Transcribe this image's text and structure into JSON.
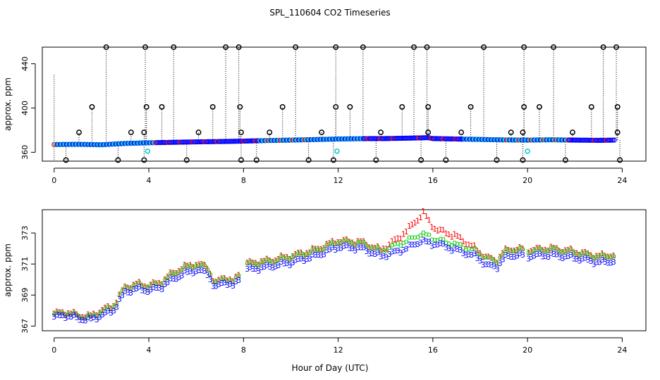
{
  "title": "SPL_110604  CO2 Timeseries",
  "xlabel": "Hour of Day (UTC)",
  "chart_data": [
    {
      "type": "scatter",
      "panel": "top",
      "ylabel": "approx. ppm",
      "xlim": [
        -0.5,
        25
      ],
      "ylim": [
        352,
        455
      ],
      "x_ticks": [
        0,
        4,
        8,
        12,
        16,
        20,
        24
      ],
      "y_ticks": [
        360,
        400,
        440
      ],
      "base_series": {
        "points": [
          [
            0,
            367.0
          ],
          [
            1,
            367.2
          ],
          [
            2,
            366.8
          ],
          [
            3,
            368.0
          ],
          [
            4,
            368.6
          ],
          [
            5,
            369.0
          ],
          [
            6,
            369.4
          ],
          [
            7,
            369.7
          ],
          [
            8,
            370.1
          ],
          [
            9,
            370.6
          ],
          [
            10,
            371.0
          ],
          [
            11,
            371.5
          ],
          [
            12,
            372.0
          ],
          [
            13,
            372.3
          ],
          [
            14,
            372.4
          ],
          [
            15,
            372.8
          ],
          [
            15.8,
            373.2
          ],
          [
            16,
            372.4
          ],
          [
            17,
            372.0
          ],
          [
            18,
            371.6
          ],
          [
            19,
            371.2
          ],
          [
            20,
            371.0
          ],
          [
            21,
            371.3
          ],
          [
            22,
            371.0
          ],
          [
            23,
            370.8
          ],
          [
            23.7,
            371.0
          ]
        ],
        "colors": [
          "#0000ff",
          "#00cccc",
          "#ff0000",
          "#00aa00"
        ]
      },
      "spikes": [
        [
          2.2,
          455
        ],
        [
          3.85,
          455
        ],
        [
          5.05,
          455
        ],
        [
          7.25,
          455
        ],
        [
          7.8,
          455
        ],
        [
          10.2,
          455
        ],
        [
          11.9,
          455
        ],
        [
          13.05,
          455
        ],
        [
          15.2,
          455
        ],
        [
          15.75,
          455
        ],
        [
          18.15,
          455
        ],
        [
          19.85,
          455
        ],
        [
          21.1,
          455
        ],
        [
          23.2,
          455
        ],
        [
          23.75,
          455
        ],
        [
          1.6,
          401
        ],
        [
          3.9,
          401
        ],
        [
          4.55,
          401
        ],
        [
          6.7,
          401
        ],
        [
          7.85,
          401
        ],
        [
          9.65,
          401
        ],
        [
          11.9,
          401
        ],
        [
          12.5,
          401
        ],
        [
          14.7,
          401
        ],
        [
          15.8,
          401
        ],
        [
          17.6,
          401
        ],
        [
          19.85,
          401
        ],
        [
          20.5,
          401
        ],
        [
          22.7,
          401
        ],
        [
          23.8,
          401
        ],
        [
          1.05,
          378
        ],
        [
          3.25,
          378
        ],
        [
          3.8,
          378
        ],
        [
          6.1,
          378
        ],
        [
          7.9,
          378
        ],
        [
          9.1,
          378
        ],
        [
          11.3,
          378
        ],
        [
          13.8,
          378
        ],
        [
          15.8,
          378
        ],
        [
          17.2,
          378
        ],
        [
          19.3,
          378
        ],
        [
          19.8,
          378
        ],
        [
          21.9,
          378
        ],
        [
          23.8,
          378
        ],
        [
          0.5,
          353
        ],
        [
          2.7,
          353
        ],
        [
          3.8,
          353
        ],
        [
          5.6,
          353
        ],
        [
          7.9,
          353
        ],
        [
          8.55,
          353
        ],
        [
          10.75,
          353
        ],
        [
          11.8,
          353
        ],
        [
          13.6,
          353
        ],
        [
          15.5,
          353
        ],
        [
          16.55,
          353
        ],
        [
          18.7,
          353
        ],
        [
          19.8,
          353
        ],
        [
          21.6,
          353
        ],
        [
          23.9,
          353
        ]
      ],
      "cyan_markers": [
        [
          3.95,
          361
        ],
        [
          11.95,
          361
        ],
        [
          20.0,
          361
        ]
      ],
      "dotted_line_x": 0.0,
      "dotted_line_top": 430
    },
    {
      "type": "line",
      "panel": "bottom",
      "ylabel": "approx. ppm",
      "xlim": [
        -0.5,
        25
      ],
      "ylim": [
        366.7,
        374.5
      ],
      "x_ticks": [
        0,
        4,
        8,
        12,
        16,
        20,
        24
      ],
      "y_ticks": [
        367,
        369,
        371,
        373
      ],
      "series": [
        {
          "marker": "1",
          "color": "#ff0000",
          "offset": 0.45,
          "points": [
            [
              0,
              367.8
            ],
            [
              0.5,
              367.9
            ],
            [
              1,
              367.7
            ],
            [
              1.5,
              367.6
            ],
            [
              2,
              368.0
            ],
            [
              2.5,
              368.3
            ],
            [
              3,
              369.5
            ],
            [
              3.5,
              369.7
            ],
            [
              4,
              369.6
            ],
            [
              4.5,
              369.8
            ],
            [
              5,
              370.4
            ],
            [
              5.5,
              370.8
            ],
            [
              6,
              371.0
            ],
            [
              6.5,
              370.8
            ],
            [
              6.8,
              369.7
            ],
            [
              7.2,
              370.2
            ],
            [
              7.6,
              369.8
            ],
            [
              8,
              371.0
            ],
            [
              9,
              371.2
            ],
            [
              10,
              371.5
            ],
            [
              11,
              371.9
            ],
            [
              12,
              372.5
            ],
            [
              13,
              372.4
            ],
            [
              13.8,
              371.9
            ],
            [
              14.5,
              372.6
            ],
            [
              15,
              373.3
            ],
            [
              15.3,
              373.8
            ],
            [
              15.6,
              374.3
            ],
            [
              15.9,
              373.6
            ],
            [
              16.2,
              373.2
            ],
            [
              17,
              372.8
            ],
            [
              17.8,
              372.0
            ],
            [
              18.3,
              371.4
            ],
            [
              18.7,
              371.2
            ],
            [
              19,
              371.8
            ],
            [
              19.5,
              372.0
            ],
            [
              20,
              371.9
            ],
            [
              21,
              372.0
            ],
            [
              22,
              371.8
            ],
            [
              23,
              371.5
            ],
            [
              23.7,
              371.6
            ]
          ]
        },
        {
          "marker": "o",
          "color": "#00cc00",
          "offset": 0.2,
          "points": [
            [
              0,
              367.8
            ],
            [
              0.5,
              367.9
            ],
            [
              1,
              367.7
            ],
            [
              1.5,
              367.6
            ],
            [
              2,
              368.0
            ],
            [
              2.5,
              368.3
            ],
            [
              3,
              369.5
            ],
            [
              3.5,
              369.7
            ],
            [
              4,
              369.6
            ],
            [
              4.5,
              369.8
            ],
            [
              5,
              370.4
            ],
            [
              5.5,
              370.8
            ],
            [
              6,
              371.0
            ],
            [
              6.5,
              370.8
            ],
            [
              6.8,
              369.7
            ],
            [
              7.2,
              370.2
            ],
            [
              7.6,
              369.8
            ],
            [
              8,
              371.0
            ],
            [
              9,
              371.2
            ],
            [
              10,
              371.5
            ],
            [
              11,
              371.9
            ],
            [
              12,
              372.5
            ],
            [
              13,
              372.4
            ],
            [
              13.8,
              371.9
            ],
            [
              14.5,
              372.3
            ],
            [
              15,
              372.6
            ],
            [
              15.5,
              373.0
            ],
            [
              15.9,
              372.8
            ],
            [
              16.2,
              372.6
            ],
            [
              17,
              372.3
            ],
            [
              17.8,
              371.9
            ],
            [
              18.3,
              371.4
            ],
            [
              18.7,
              371.2
            ],
            [
              19,
              371.8
            ],
            [
              19.5,
              372.0
            ],
            [
              20,
              371.9
            ],
            [
              21,
              372.0
            ],
            [
              22,
              371.8
            ],
            [
              23,
              371.5
            ],
            [
              23.7,
              371.6
            ]
          ]
        },
        {
          "marker": "3",
          "color": "#0000ff",
          "offset": 0.0,
          "points": [
            [
              0,
              367.6
            ],
            [
              0.5,
              367.7
            ],
            [
              1,
              367.5
            ],
            [
              1.5,
              367.4
            ],
            [
              2,
              367.7
            ],
            [
              2.5,
              368.0
            ],
            [
              3,
              369.2
            ],
            [
              3.5,
              369.4
            ],
            [
              4,
              369.3
            ],
            [
              4.5,
              369.5
            ],
            [
              5,
              370.0
            ],
            [
              5.5,
              370.4
            ],
            [
              6,
              370.6
            ],
            [
              6.5,
              370.4
            ],
            [
              6.8,
              369.4
            ],
            [
              7.2,
              369.9
            ],
            [
              7.6,
              369.5
            ],
            [
              8,
              370.6
            ],
            [
              9,
              370.8
            ],
            [
              10,
              371.1
            ],
            [
              11,
              371.5
            ],
            [
              12,
              372.1
            ],
            [
              13,
              372.0
            ],
            [
              13.8,
              371.5
            ],
            [
              14.5,
              371.8
            ],
            [
              15,
              372.1
            ],
            [
              15.5,
              372.5
            ],
            [
              15.9,
              372.3
            ],
            [
              16.2,
              372.3
            ],
            [
              17,
              371.9
            ],
            [
              17.8,
              371.5
            ],
            [
              18.3,
              370.9
            ],
            [
              18.7,
              370.8
            ],
            [
              19,
              371.4
            ],
            [
              19.5,
              371.6
            ],
            [
              20,
              371.5
            ],
            [
              21,
              371.6
            ],
            [
              22,
              371.4
            ],
            [
              23,
              371.1
            ],
            [
              23.7,
              371.2
            ]
          ]
        }
      ]
    }
  ]
}
